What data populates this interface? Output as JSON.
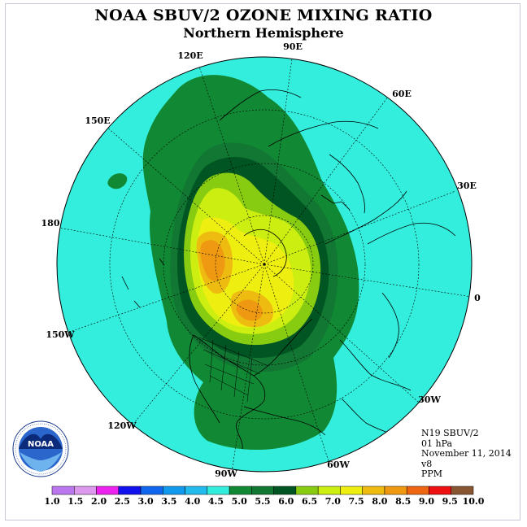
{
  "title": "NOAA SBUV/2 OZONE MIXING RATIO",
  "subtitle": "Northern Hemisphere",
  "longitude_labels": [
    "90E",
    "60E",
    "30E",
    "0",
    "30W",
    "60W",
    "90W",
    "120W",
    "150W",
    "180",
    "150E",
    "120E"
  ],
  "info": {
    "satellite": "N19 SBUV/2",
    "level": "01 hPa",
    "date": "November 11, 2014",
    "version": "v8",
    "units": "PPM"
  },
  "logo_text": "NOAA",
  "colorbar": {
    "ticks": [
      "1.0",
      "1.5",
      "2.0",
      "2.5",
      "3.0",
      "3.5",
      "4.0",
      "4.5",
      "5.0",
      "5.5",
      "6.0",
      "6.5",
      "7.0",
      "7.5",
      "8.0",
      "8.5",
      "9.0",
      "9.5",
      "10.0"
    ],
    "colors": [
      "#bb77ee",
      "#dd99ee",
      "#ee22ee",
      "#1111ee",
      "#1166ee",
      "#1199ee",
      "#22bbee",
      "#33eedd",
      "#118833",
      "#117733",
      "#005522",
      "#88cc11",
      "#ccee11",
      "#eeee11",
      "#eebb11",
      "#ee9911",
      "#ee6611",
      "#ee1111",
      "#885533"
    ]
  }
}
